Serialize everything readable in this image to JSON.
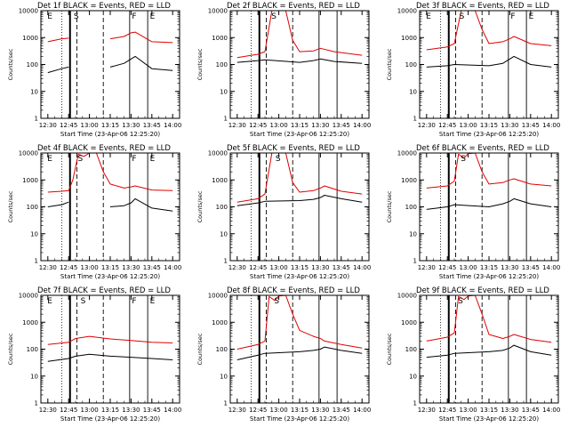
{
  "window": {
    "background": "#ffffff"
  },
  "colors": {
    "events": "#000000",
    "lld": "#e00000",
    "axis": "#000000"
  },
  "chart_data": [
    {
      "type": "line",
      "title": "Det 1f BLACK = Events, RED = LLD",
      "xlabel": "Start Time (23-Apr-06 12:25:20)",
      "ylabel": "Counts/sec",
      "xticks": [
        "12:30",
        "12:45",
        "13:00",
        "13:15",
        "13:30",
        "13:45",
        "14:00"
      ],
      "yticks": [
        "1",
        "10",
        "100",
        "1000",
        "10000"
      ],
      "ylim": [
        1,
        10000
      ],
      "yscale": "log",
      "markers": [
        {
          "label": "E",
          "x": "12:29"
        },
        {
          "label": "S",
          "x": "12:48"
        },
        {
          "label": "F",
          "x": "13:30"
        },
        {
          "label": "E",
          "x": "13:43"
        }
      ],
      "series": [
        {
          "name": "Events",
          "color": "#000000",
          "x": [
            "12:30",
            "12:40",
            "12:45",
            "12:46",
            "13:15",
            "13:25",
            "13:30",
            "13:33",
            "13:45",
            "14:00"
          ],
          "y": [
            50,
            70,
            80,
            null,
            80,
            110,
            160,
            200,
            70,
            60
          ]
        },
        {
          "name": "LLD",
          "color": "#e00000",
          "x": [
            "12:30",
            "12:40",
            "12:45",
            "12:46",
            "13:15",
            "13:25",
            "13:30",
            "13:33",
            "13:45",
            "14:00"
          ],
          "y": [
            700,
            900,
            950,
            null,
            900,
            1100,
            1500,
            1600,
            700,
            650
          ]
        }
      ]
    },
    {
      "type": "line",
      "title": "Det 2f BLACK = Events, RED = LLD",
      "xlabel": "Start Time (23-Apr-06 12:25:20)",
      "ylabel": "Counts/sec",
      "xticks": [
        "12:30",
        "12:45",
        "13:00",
        "13:15",
        "13:30",
        "13:45",
        "14:00"
      ],
      "yticks": [
        "1",
        "10",
        "100",
        "1000",
        "10000"
      ],
      "ylim": [
        1,
        10000
      ],
      "yscale": "log",
      "markers": [
        {
          "label": "S",
          "x": "12:54"
        }
      ],
      "series": [
        {
          "name": "Events",
          "color": "#000000",
          "x": [
            "12:30",
            "12:45",
            "12:50",
            "13:15",
            "13:25",
            "13:30",
            "13:40",
            "14:00"
          ],
          "y": [
            120,
            140,
            150,
            120,
            140,
            160,
            130,
            110
          ]
        },
        {
          "name": "LLD",
          "color": "#e00000",
          "x": [
            "12:30",
            "12:45",
            "12:50",
            "12:55",
            "13:05",
            "13:10",
            "13:15",
            "13:25",
            "13:30",
            "13:40",
            "14:00"
          ],
          "y": [
            180,
            240,
            300,
            10000,
            10000,
            800,
            300,
            320,
            400,
            300,
            220
          ]
        }
      ]
    },
    {
      "type": "line",
      "title": "Det 3f BLACK = Events, RED = LLD",
      "xlabel": "Start Time (23-Apr-06 12:25:20)",
      "ylabel": "Counts/sec",
      "xticks": [
        "12:30",
        "12:45",
        "13:00",
        "13:15",
        "13:30",
        "13:45",
        "14:00"
      ],
      "yticks": [
        "1",
        "10",
        "100",
        "1000",
        "10000"
      ],
      "ylim": [
        1,
        10000
      ],
      "yscale": "log",
      "markers": [
        {
          "label": "E",
          "x": "12:29"
        },
        {
          "label": "S",
          "x": "12:53"
        },
        {
          "label": "F",
          "x": "13:30"
        },
        {
          "label": "E",
          "x": "13:43"
        }
      ],
      "series": [
        {
          "name": "Events",
          "color": "#000000",
          "x": [
            "12:30",
            "12:45",
            "12:50",
            "13:15",
            "13:25",
            "13:30",
            "13:33",
            "13:45",
            "14:00"
          ],
          "y": [
            80,
            90,
            100,
            90,
            110,
            160,
            200,
            100,
            80
          ]
        },
        {
          "name": "LLD",
          "color": "#e00000",
          "x": [
            "12:30",
            "12:45",
            "12:50",
            "12:55",
            "13:05",
            "13:10",
            "13:15",
            "13:25",
            "13:30",
            "13:33",
            "13:45",
            "14:00"
          ],
          "y": [
            350,
            450,
            600,
            10000,
            10000,
            2000,
            600,
            700,
            900,
            1100,
            600,
            500
          ]
        }
      ]
    },
    {
      "type": "line",
      "title": "Det 4f BLACK = Events, RED = LLD",
      "xlabel": "Start Time (23-Apr-06 12:25:20)",
      "ylabel": "Counts/sec",
      "xticks": [
        "12:30",
        "12:45",
        "13:00",
        "13:15",
        "13:30",
        "13:45",
        "14:00"
      ],
      "yticks": [
        "1",
        "10",
        "100",
        "1000",
        "10000"
      ],
      "ylim": [
        1,
        10000
      ],
      "yscale": "log",
      "markers": [
        {
          "label": "E",
          "x": "12:29"
        },
        {
          "label": "S",
          "x": "12:51"
        },
        {
          "label": "F",
          "x": "13:30"
        },
        {
          "label": "E",
          "x": "13:43"
        }
      ],
      "series": [
        {
          "name": "Events",
          "color": "#000000",
          "x": [
            "12:30",
            "12:40",
            "12:45",
            "12:47",
            "13:15",
            "13:25",
            "13:30",
            "13:33",
            "13:45",
            "14:00"
          ],
          "y": [
            100,
            120,
            150,
            null,
            100,
            110,
            140,
            200,
            90,
            70
          ]
        },
        {
          "name": "LLD",
          "color": "#e00000",
          "x": [
            "12:30",
            "12:40",
            "12:45",
            "12:48",
            "12:52",
            "12:56",
            "13:00",
            "13:05",
            "13:10",
            "13:15",
            "13:25",
            "13:30",
            "13:33",
            "13:45",
            "14:00"
          ],
          "y": [
            350,
            380,
            400,
            1000,
            9000,
            7500,
            10000,
            10000,
            2000,
            700,
            500,
            550,
            600,
            420,
            400
          ]
        }
      ]
    },
    {
      "type": "line",
      "title": "Det 5f BLACK = Events, RED = LLD",
      "xlabel": "Start Time (23-Apr-06 12:25:20)",
      "ylabel": "Counts/sec",
      "xticks": [
        "12:30",
        "12:45",
        "13:00",
        "13:15",
        "13:30",
        "13:45",
        "14:00"
      ],
      "yticks": [
        "1",
        "10",
        "100",
        "1000",
        "10000"
      ],
      "ylim": [
        1,
        10000
      ],
      "yscale": "log",
      "markers": [
        {
          "label": "S",
          "x": "12:57"
        }
      ],
      "series": [
        {
          "name": "Events",
          "color": "#000000",
          "x": [
            "12:30",
            "12:45",
            "12:50",
            "13:15",
            "13:25",
            "13:30",
            "13:33",
            "13:45",
            "14:00"
          ],
          "y": [
            110,
            140,
            160,
            170,
            190,
            220,
            270,
            200,
            150
          ]
        },
        {
          "name": "LLD",
          "color": "#e00000",
          "x": [
            "12:30",
            "12:45",
            "12:50",
            "12:55",
            "13:05",
            "13:10",
            "13:15",
            "13:25",
            "13:30",
            "13:33",
            "13:45",
            "14:00"
          ],
          "y": [
            150,
            200,
            300,
            10000,
            10000,
            800,
            350,
            400,
            500,
            600,
            380,
            300
          ]
        }
      ]
    },
    {
      "type": "line",
      "title": "Det 6f BLACK = Events, RED = LLD",
      "xlabel": "Start Time (23-Apr-06 12:25:20)",
      "ylabel": "Counts/sec",
      "xticks": [
        "12:30",
        "12:45",
        "13:00",
        "13:15",
        "13:30",
        "13:45",
        "14:00"
      ],
      "yticks": [
        "1",
        "10",
        "100",
        "1000",
        "10000"
      ],
      "ylim": [
        1,
        10000
      ],
      "yscale": "log",
      "markers": [
        {
          "label": "S",
          "x": "12:54"
        }
      ],
      "series": [
        {
          "name": "Events",
          "color": "#000000",
          "x": [
            "12:30",
            "12:45",
            "12:50",
            "13:15",
            "13:25",
            "13:30",
            "13:33",
            "13:45",
            "14:00"
          ],
          "y": [
            80,
            100,
            120,
            100,
            130,
            160,
            200,
            130,
            100
          ]
        },
        {
          "name": "LLD",
          "color": "#e00000",
          "x": [
            "12:30",
            "12:45",
            "12:50",
            "12:53",
            "12:57",
            "13:00",
            "13:05",
            "13:10",
            "13:15",
            "13:25",
            "13:30",
            "13:33",
            "13:45",
            "14:00"
          ],
          "y": [
            500,
            600,
            900,
            9000,
            6500,
            9500,
            10000,
            2000,
            700,
            800,
            1000,
            1100,
            700,
            600
          ]
        }
      ]
    },
    {
      "type": "line",
      "title": "Det 7f BLACK = Events, RED = LLD",
      "xlabel": "Start Time (23-Apr-06 12:25:20)",
      "ylabel": "Counts/sec",
      "xticks": [
        "12:30",
        "12:45",
        "13:00",
        "13:15",
        "13:30",
        "13:45",
        "14:00"
      ],
      "yticks": [
        "1",
        "10",
        "100",
        "1000",
        "10000"
      ],
      "ylim": [
        1,
        10000
      ],
      "yscale": "log",
      "markers": [
        {
          "label": "E",
          "x": "12:29"
        },
        {
          "label": "S",
          "x": "12:53"
        },
        {
          "label": "F",
          "x": "13:30"
        },
        {
          "label": "E",
          "x": "13:43"
        }
      ],
      "series": [
        {
          "name": "Events",
          "color": "#000000",
          "x": [
            "12:30",
            "12:45",
            "12:50",
            "13:00",
            "13:15",
            "13:30",
            "13:45",
            "14:00"
          ],
          "y": [
            35,
            45,
            55,
            65,
            55,
            50,
            45,
            40
          ]
        },
        {
          "name": "LLD",
          "color": "#e00000",
          "x": [
            "12:30",
            "12:45",
            "12:50",
            "13:00",
            "13:15",
            "13:30",
            "13:45",
            "14:00"
          ],
          "y": [
            150,
            180,
            250,
            300,
            240,
            210,
            180,
            170
          ]
        }
      ]
    },
    {
      "type": "line",
      "title": "Det 8f BLACK = Events, RED = LLD",
      "xlabel": "Start Time (23-Apr-06 12:25:20)",
      "ylabel": "Counts/sec",
      "xticks": [
        "12:30",
        "12:45",
        "13:00",
        "13:15",
        "13:30",
        "13:45",
        "14:00"
      ],
      "yticks": [
        "1",
        "10",
        "100",
        "1000",
        "10000"
      ],
      "ylim": [
        1,
        10000
      ],
      "yscale": "log",
      "markers": [
        {
          "label": "S",
          "x": "12:56"
        }
      ],
      "series": [
        {
          "name": "Events",
          "color": "#000000",
          "x": [
            "12:30",
            "12:45",
            "12:50",
            "13:15",
            "13:25",
            "13:30",
            "13:33",
            "13:45",
            "14:00"
          ],
          "y": [
            40,
            60,
            70,
            80,
            90,
            100,
            120,
            90,
            70
          ]
        },
        {
          "name": "LLD",
          "color": "#e00000",
          "x": [
            "12:30",
            "12:45",
            "12:50",
            "12:53",
            "12:57",
            "13:00",
            "13:05",
            "13:10",
            "13:15",
            "13:25",
            "13:30",
            "13:33",
            "13:45",
            "14:00"
          ],
          "y": [
            100,
            150,
            200,
            9000,
            6500,
            9500,
            10000,
            2000,
            500,
            300,
            250,
            200,
            150,
            110
          ]
        }
      ]
    },
    {
      "type": "line",
      "title": "Det 9f BLACK = Events, RED = LLD",
      "xlabel": "Start Time (23-Apr-06 12:25:20)",
      "ylabel": "Counts/sec",
      "xticks": [
        "12:30",
        "12:45",
        "13:00",
        "13:15",
        "13:30",
        "13:45",
        "14:00"
      ],
      "yticks": [
        "1",
        "10",
        "100",
        "1000",
        "10000"
      ],
      "ylim": [
        1,
        10000
      ],
      "yscale": "log",
      "markers": [
        {
          "label": "S",
          "x": "12:52"
        }
      ],
      "series": [
        {
          "name": "Events",
          "color": "#000000",
          "x": [
            "12:30",
            "12:45",
            "12:50",
            "13:15",
            "13:25",
            "13:30",
            "13:33",
            "13:45",
            "14:00"
          ],
          "y": [
            50,
            60,
            70,
            80,
            90,
            110,
            140,
            80,
            60
          ]
        },
        {
          "name": "LLD",
          "color": "#e00000",
          "x": [
            "12:30",
            "12:45",
            "12:50",
            "12:53",
            "12:57",
            "13:00",
            "13:05",
            "13:10",
            "13:15",
            "13:25",
            "13:30",
            "13:33",
            "13:45",
            "14:00"
          ],
          "y": [
            200,
            280,
            400,
            9000,
            7000,
            9500,
            10000,
            2000,
            350,
            250,
            300,
            350,
            230,
            180
          ]
        }
      ]
    }
  ]
}
